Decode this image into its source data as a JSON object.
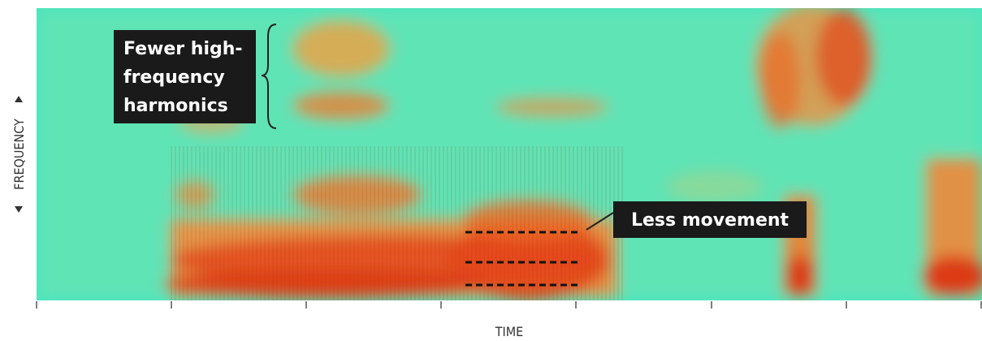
{
  "annotations": {
    "harmonics": {
      "lines": [
        "Fewer high-",
        "frequency",
        "harmonics"
      ]
    },
    "movement": {
      "text": "Less movement"
    }
  },
  "axes": {
    "x_label": "TIME",
    "y_label": "FREQUENCY"
  }
}
